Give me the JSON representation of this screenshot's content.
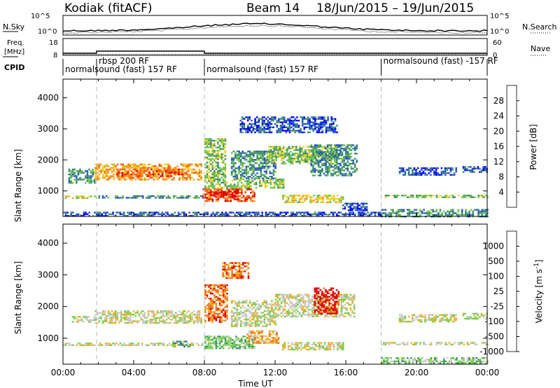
{
  "header": {
    "station": "Kodiak (fitACF)",
    "beam": "Beam 14",
    "daterange": "18/Jun/2015 – 19/Jun/2015"
  },
  "noise_panel": {
    "left_label": "N.Sky",
    "right_label": "N.Search",
    "left_ticks": [
      "10^5",
      "10^0"
    ],
    "right_ticks": [
      "10^5",
      "10^0"
    ]
  },
  "freq_panel": {
    "left_label_1": "Freq.",
    "left_label_2": "[MHz]",
    "right_label": "Nave",
    "left_ticks": [
      "18",
      "8"
    ],
    "right_ticks": [
      "60",
      "0"
    ]
  },
  "cpid_panel": {
    "label": "CPID",
    "segments": [
      {
        "start": 0,
        "end": 8,
        "text": "normalsound (fast) 157 RF",
        "row": 2
      },
      {
        "start": 1.9,
        "end": 8,
        "text": "rbsp 200 RF",
        "row": 1
      },
      {
        "start": 8,
        "end": 18,
        "text": "normalsound (fast) 157 RF",
        "row": 2
      },
      {
        "start": 18,
        "end": 24,
        "text": "normalsound (fast) -157 RF",
        "row": 1
      }
    ]
  },
  "chart_data": [
    {
      "type": "heatmap",
      "title": "",
      "xlabel": "Time UT",
      "ylabel": "Slant Range [km]",
      "xlim": [
        0,
        24
      ],
      "ylim": [
        180,
        4600
      ],
      "yticks": [
        1000,
        2000,
        3000,
        4000
      ],
      "colorbar": {
        "label": "Power [dB]",
        "ticks": [
          "4",
          "8",
          "12",
          "16",
          "20",
          "24",
          "28"
        ],
        "colors": [
          "#0000ff",
          "#2454c8",
          "#3d8c6b",
          "#6ac24a",
          "#f0d020",
          "#f8a020",
          "#f06010",
          "#e00000"
        ]
      },
      "regions": [
        {
          "t0": 0.0,
          "t1": 2.0,
          "r0": 760,
          "r1": 850,
          "level": 4
        },
        {
          "t0": 2.0,
          "t1": 7.9,
          "r0": 760,
          "r1": 860,
          "level": 2
        },
        {
          "t0": 0.3,
          "t1": 1.8,
          "r0": 1280,
          "r1": 1720,
          "level": 2
        },
        {
          "t0": 1.8,
          "t1": 7.8,
          "r0": 1360,
          "r1": 1880,
          "level": 5
        },
        {
          "t0": 3.0,
          "t1": 6.8,
          "r0": 1450,
          "r1": 1720,
          "level": 6
        },
        {
          "t0": 7.9,
          "t1": 10.8,
          "r0": 700,
          "r1": 1080,
          "level": 6
        },
        {
          "t0": 8.3,
          "t1": 10.0,
          "r0": 800,
          "r1": 1000,
          "level": 7
        },
        {
          "t0": 8.0,
          "t1": 12.5,
          "r0": 1100,
          "r1": 1400,
          "level": 3
        },
        {
          "t0": 8.0,
          "t1": 9.2,
          "r0": 1400,
          "r1": 2700,
          "level": 3
        },
        {
          "t0": 9.5,
          "t1": 12.0,
          "r0": 1400,
          "r1": 2300,
          "level": 2
        },
        {
          "t0": 11.5,
          "t1": 15.5,
          "r0": 1900,
          "r1": 2450,
          "level": 3
        },
        {
          "t0": 12.4,
          "t1": 15.8,
          "r0": 650,
          "r1": 880,
          "level": 4
        },
        {
          "t0": 14.0,
          "t1": 16.6,
          "r0": 1500,
          "r1": 2500,
          "level": 2
        },
        {
          "t0": 10.0,
          "t1": 15.5,
          "r0": 2900,
          "r1": 3400,
          "level": 1
        },
        {
          "t0": 15.8,
          "t1": 17.2,
          "r0": 350,
          "r1": 620,
          "level": 1
        },
        {
          "t0": 18.0,
          "t1": 24.0,
          "r0": 780,
          "r1": 880,
          "level": 3
        },
        {
          "t0": 19.0,
          "t1": 22.2,
          "r0": 1500,
          "r1": 1760,
          "level": 1
        },
        {
          "t0": 22.6,
          "t1": 24.0,
          "r0": 1600,
          "r1": 1800,
          "level": 1
        },
        {
          "t0": 18.0,
          "t1": 24.0,
          "r0": 200,
          "r1": 420,
          "level": 2
        },
        {
          "t0": 0.0,
          "t1": 18.0,
          "r0": 200,
          "r1": 330,
          "level": 1
        }
      ]
    },
    {
      "type": "heatmap",
      "title": "",
      "xlabel": "Time UT",
      "ylabel": "Slant Range [km]",
      "xlim": [
        0,
        24
      ],
      "ylim": [
        180,
        4600
      ],
      "yticks": [
        1000,
        2000,
        3000,
        4000
      ],
      "xticks": [
        "00:00",
        "04:00",
        "08:00",
        "12:00",
        "16:00",
        "20:00",
        "00:00"
      ],
      "colorbar": {
        "label": "Velocity [m s^-1]",
        "ticks": [
          "1000",
          "500",
          "100",
          "25",
          "-25",
          "-100",
          "-500",
          "-1000"
        ],
        "colors": [
          "#2030c0",
          "#3060b0",
          "#3a9a5a",
          "#70d040",
          "#c8c8c8",
          "#f0b020",
          "#f07010",
          "#e00000"
        ]
      },
      "regions": [
        {
          "t0": 0.0,
          "t1": 8.0,
          "r0": 760,
          "r1": 860,
          "level": 4
        },
        {
          "t0": 1.8,
          "t1": 7.8,
          "r0": 1480,
          "r1": 1880,
          "level": 4
        },
        {
          "t0": 0.5,
          "t1": 1.8,
          "r0": 1500,
          "r1": 1700,
          "level": 4
        },
        {
          "t0": 6.2,
          "t1": 7.2,
          "r0": 720,
          "r1": 920,
          "level": 2
        },
        {
          "t0": 8.0,
          "t1": 10.8,
          "r0": 700,
          "r1": 1080,
          "level": 3
        },
        {
          "t0": 10.4,
          "t1": 12.2,
          "r0": 850,
          "r1": 1250,
          "level": 5
        },
        {
          "t0": 8.0,
          "t1": 9.3,
          "r0": 1500,
          "r1": 2700,
          "level": 6
        },
        {
          "t0": 9.5,
          "t1": 12.0,
          "r0": 1400,
          "r1": 2200,
          "level": 4
        },
        {
          "t0": 12.0,
          "t1": 16.5,
          "r0": 1700,
          "r1": 2400,
          "level": 4
        },
        {
          "t0": 14.2,
          "t1": 15.6,
          "r0": 1800,
          "r1": 2600,
          "level": 7
        },
        {
          "t0": 12.4,
          "t1": 15.8,
          "r0": 650,
          "r1": 880,
          "level": 4
        },
        {
          "t0": 18.0,
          "t1": 24.0,
          "r0": 780,
          "r1": 880,
          "level": 4
        },
        {
          "t0": 19.0,
          "t1": 22.2,
          "r0": 1500,
          "r1": 1760,
          "level": 4
        },
        {
          "t0": 22.6,
          "t1": 24.0,
          "r0": 1600,
          "r1": 1800,
          "level": 4
        },
        {
          "t0": 18.0,
          "t1": 24.0,
          "r0": 200,
          "r1": 400,
          "level": 3
        },
        {
          "t0": 9.0,
          "t1": 10.5,
          "r0": 2900,
          "r1": 3400,
          "level": 6
        }
      ]
    }
  ]
}
